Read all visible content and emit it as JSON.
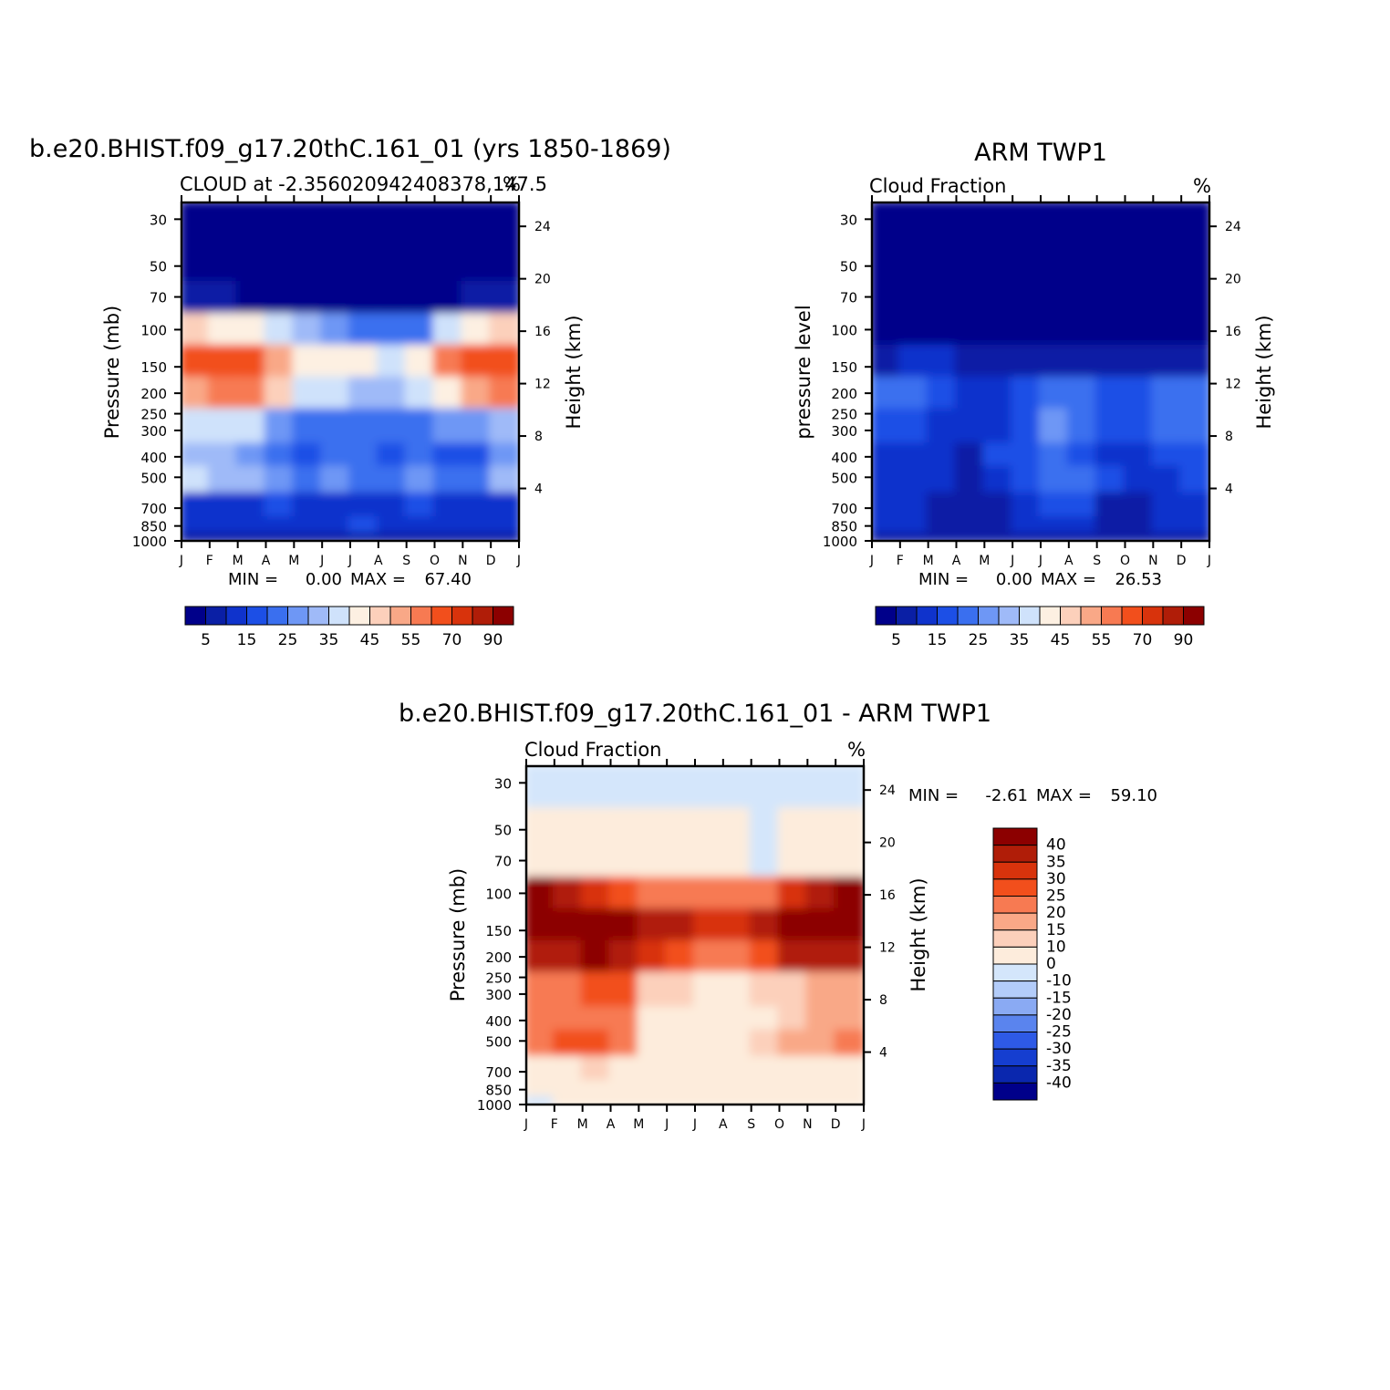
{
  "chart_data": [
    {
      "type": "heatmap",
      "title": "b.e20.BHIST.f09_g17.20thC.161_01 (yrs 1850-1869)",
      "subtitle_left": "CLOUD at -2.356020942408378,147.5",
      "subtitle_right": "%",
      "ylabel": "Pressure (mb)",
      "ylabel_right": "Height (km)",
      "x_ticks": [
        "J",
        "F",
        "M",
        "A",
        "M",
        "J",
        "J",
        "A",
        "S",
        "O",
        "N",
        "D",
        "J"
      ],
      "y_ticks": [
        "30",
        "50",
        "70",
        "100",
        "150",
        "200",
        "250",
        "300",
        "400",
        "500",
        "700",
        "850",
        "1000"
      ],
      "y_ticks_right": [
        "24",
        "20",
        "16",
        "12",
        "8",
        "4"
      ],
      "stats": {
        "min_label": "MIN =",
        "min": "0.00",
        "max_label": "MAX =",
        "max": "67.40"
      },
      "colorbar_labels": [
        "5",
        "15",
        "25",
        "35",
        "45",
        "55",
        "70",
        "90"
      ],
      "levels": [
        0,
        5,
        10,
        15,
        20,
        25,
        30,
        35,
        40,
        45,
        50,
        55,
        60,
        70,
        80,
        90
      ],
      "approx_values_by_month": {
        "months": [
          "J",
          "F",
          "M",
          "A",
          "M",
          "J",
          "J",
          "A",
          "S",
          "O",
          "N",
          "D"
        ],
        "pressure_mb": [
          30,
          50,
          70,
          100,
          150,
          200,
          300,
          400,
          500,
          700,
          850,
          1000
        ],
        "values": [
          [
            0,
            0,
            0,
            0,
            0,
            0,
            0,
            0,
            0,
            0,
            0,
            0
          ],
          [
            0,
            0,
            0,
            0,
            0,
            0,
            0,
            0,
            0,
            0,
            0,
            0
          ],
          [
            5,
            5,
            3,
            3,
            2,
            2,
            2,
            2,
            2,
            3,
            5,
            5
          ],
          [
            45,
            42,
            40,
            35,
            30,
            25,
            22,
            20,
            22,
            35,
            42,
            45
          ],
          [
            60,
            65,
            60,
            50,
            43,
            40,
            40,
            38,
            42,
            55,
            62,
            65
          ],
          [
            50,
            55,
            55,
            45,
            38,
            35,
            30,
            32,
            35,
            42,
            50,
            55
          ],
          [
            35,
            38,
            35,
            28,
            22,
            20,
            22,
            20,
            22,
            25,
            28,
            32
          ],
          [
            30,
            30,
            28,
            20,
            18,
            20,
            22,
            15,
            20,
            18,
            18,
            25
          ],
          [
            35,
            33,
            33,
            28,
            22,
            25,
            22,
            22,
            25,
            20,
            22,
            30
          ],
          [
            10,
            12,
            12,
            15,
            12,
            10,
            10,
            12,
            15,
            12,
            12,
            10
          ],
          [
            10,
            10,
            10,
            10,
            10,
            12,
            15,
            12,
            12,
            10,
            10,
            10
          ],
          [
            5,
            5,
            5,
            5,
            5,
            5,
            5,
            5,
            5,
            5,
            5,
            5
          ]
        ]
      }
    },
    {
      "type": "heatmap",
      "title": "ARM TWP1",
      "subtitle_left": "Cloud Fraction",
      "subtitle_right": "%",
      "ylabel": "pressure level",
      "ylabel_right": "Height (km)",
      "x_ticks": [
        "J",
        "F",
        "M",
        "A",
        "M",
        "J",
        "J",
        "A",
        "S",
        "O",
        "N",
        "D",
        "J"
      ],
      "y_ticks": [
        "30",
        "50",
        "70",
        "100",
        "150",
        "200",
        "250",
        "300",
        "400",
        "500",
        "700",
        "850",
        "1000"
      ],
      "y_ticks_right": [
        "24",
        "20",
        "16",
        "12",
        "8",
        "4"
      ],
      "stats": {
        "min_label": "MIN =",
        "min": "0.00",
        "max_label": "MAX =",
        "max": "26.53"
      },
      "colorbar_labels": [
        "5",
        "15",
        "25",
        "35",
        "45",
        "55",
        "70",
        "90"
      ],
      "levels": [
        0,
        5,
        10,
        15,
        20,
        25,
        30,
        35,
        40,
        45,
        50,
        55,
        60,
        70,
        80,
        90
      ],
      "approx_values_by_month": {
        "months": [
          "J",
          "F",
          "M",
          "A",
          "M",
          "J",
          "J",
          "A",
          "S",
          "O",
          "N",
          "D"
        ],
        "pressure_mb": [
          30,
          50,
          70,
          100,
          150,
          200,
          300,
          400,
          500,
          700,
          850,
          1000
        ],
        "values": [
          [
            0,
            0,
            0,
            0,
            0,
            0,
            0,
            0,
            0,
            0,
            0,
            0
          ],
          [
            0,
            0,
            0,
            0,
            0,
            0,
            0,
            0,
            0,
            0,
            0,
            0
          ],
          [
            0,
            0,
            0,
            0,
            0,
            0,
            0,
            0,
            0,
            0,
            0,
            0
          ],
          [
            0,
            0,
            0,
            0,
            0,
            0,
            0,
            0,
            0,
            0,
            0,
            0
          ],
          [
            8,
            10,
            10,
            8,
            7,
            6,
            6,
            6,
            6,
            6,
            8,
            8
          ],
          [
            20,
            20,
            15,
            12,
            13,
            15,
            20,
            20,
            18,
            15,
            20,
            20
          ],
          [
            18,
            15,
            13,
            12,
            13,
            15,
            25,
            20,
            15,
            15,
            22,
            20
          ],
          [
            13,
            12,
            13,
            8,
            15,
            15,
            20,
            15,
            12,
            13,
            15,
            17
          ],
          [
            13,
            12,
            12,
            8,
            12,
            15,
            20,
            20,
            15,
            12,
            13,
            15
          ],
          [
            12,
            10,
            8,
            6,
            8,
            12,
            15,
            15,
            8,
            8,
            10,
            12
          ],
          [
            10,
            10,
            8,
            6,
            6,
            10,
            10,
            10,
            8,
            8,
            10,
            12
          ],
          [
            5,
            5,
            5,
            5,
            5,
            5,
            5,
            5,
            5,
            5,
            5,
            5
          ]
        ]
      }
    },
    {
      "type": "heatmap",
      "title": "b.e20.BHIST.f09_g17.20thC.161_01 - ARM TWP1",
      "subtitle_left": "Cloud Fraction",
      "subtitle_right": "%",
      "ylabel": "Pressure (mb)",
      "ylabel_right": "Height (km)",
      "x_ticks": [
        "J",
        "F",
        "M",
        "A",
        "M",
        "J",
        "J",
        "A",
        "S",
        "O",
        "N",
        "D",
        "J"
      ],
      "y_ticks": [
        "30",
        "50",
        "70",
        "100",
        "150",
        "200",
        "250",
        "300",
        "400",
        "500",
        "700",
        "850",
        "1000"
      ],
      "y_ticks_right": [
        "24",
        "20",
        "16",
        "12",
        "8",
        "4"
      ],
      "stats": {
        "min_label": "MIN =",
        "min": "-2.61",
        "max_label": "MAX =",
        "max": "59.10"
      },
      "colorbar_labels": [
        "40",
        "35",
        "30",
        "25",
        "20",
        "15",
        "10",
        "0",
        "-10",
        "-15",
        "-20",
        "-25",
        "-30",
        "-35",
        "-40"
      ],
      "approx_values_by_month": {
        "months": [
          "J",
          "F",
          "M",
          "A",
          "M",
          "J",
          "J",
          "A",
          "S",
          "O",
          "N",
          "D"
        ],
        "pressure_mb": [
          30,
          50,
          70,
          100,
          150,
          200,
          300,
          400,
          500,
          700,
          850,
          1000
        ],
        "values": [
          [
            -1,
            -1,
            -1,
            -1,
            -1,
            -1,
            -1,
            -1,
            -1,
            -1,
            -1,
            -1
          ],
          [
            1,
            1,
            1,
            1,
            1,
            1,
            1,
            1,
            -1,
            1,
            1,
            1
          ],
          [
            2,
            2,
            2,
            2,
            2,
            2,
            2,
            2,
            -1,
            2,
            2,
            2
          ],
          [
            40,
            35,
            30,
            25,
            20,
            20,
            20,
            20,
            20,
            30,
            35,
            40
          ],
          [
            45,
            45,
            45,
            42,
            38,
            35,
            30,
            30,
            35,
            42,
            45,
            45
          ],
          [
            35,
            35,
            45,
            35,
            30,
            25,
            20,
            20,
            25,
            35,
            35,
            35
          ],
          [
            20,
            20,
            25,
            25,
            12,
            10,
            8,
            8,
            10,
            12,
            15,
            15
          ],
          [
            20,
            22,
            20,
            20,
            8,
            5,
            5,
            5,
            8,
            12,
            15,
            15
          ],
          [
            20,
            25,
            28,
            22,
            8,
            5,
            5,
            5,
            12,
            15,
            15,
            20
          ],
          [
            5,
            5,
            10,
            8,
            5,
            5,
            5,
            5,
            5,
            5,
            5,
            5
          ],
          [
            2,
            2,
            2,
            2,
            2,
            2,
            2,
            2,
            2,
            2,
            2,
            2
          ],
          [
            -1,
            1,
            1,
            1,
            1,
            1,
            1,
            1,
            1,
            1,
            1,
            1
          ]
        ]
      }
    }
  ],
  "palette": {
    "main16": [
      "#00008a",
      "#0a1fa5",
      "#0f33cc",
      "#1c4fe6",
      "#3a6fef",
      "#6e97f5",
      "#9fbaf8",
      "#cfe2fb",
      "#fdf0e2",
      "#fcd0bb",
      "#f9a887",
      "#f77a52",
      "#f24f1c",
      "#d8330c",
      "#b01d08",
      "#8c0000"
    ],
    "diff_levels": [
      {
        "label": "40",
        "color": "#8c0000"
      },
      {
        "label": "35",
        "color": "#b01d08"
      },
      {
        "label": "30",
        "color": "#d8330c"
      },
      {
        "label": "25",
        "color": "#f24f1c"
      },
      {
        "label": "20",
        "color": "#f77a52"
      },
      {
        "label": "15",
        "color": "#f9a887"
      },
      {
        "label": "10",
        "color": "#fcd0bb"
      },
      {
        "label": "0",
        "color": "#fdecdc"
      },
      {
        "label": "-10",
        "color": "#d4e6fb"
      },
      {
        "label": "-15",
        "color": "#b3ccf9"
      },
      {
        "label": "-20",
        "color": "#8aaaf3"
      },
      {
        "label": "-25",
        "color": "#5a84ee"
      },
      {
        "label": "-30",
        "color": "#2e5ae6"
      },
      {
        "label": "-35",
        "color": "#153ed0"
      },
      {
        "label": "-40",
        "color": "#0a27ae"
      },
      {
        "label": "",
        "color": "#00008a"
      }
    ]
  }
}
